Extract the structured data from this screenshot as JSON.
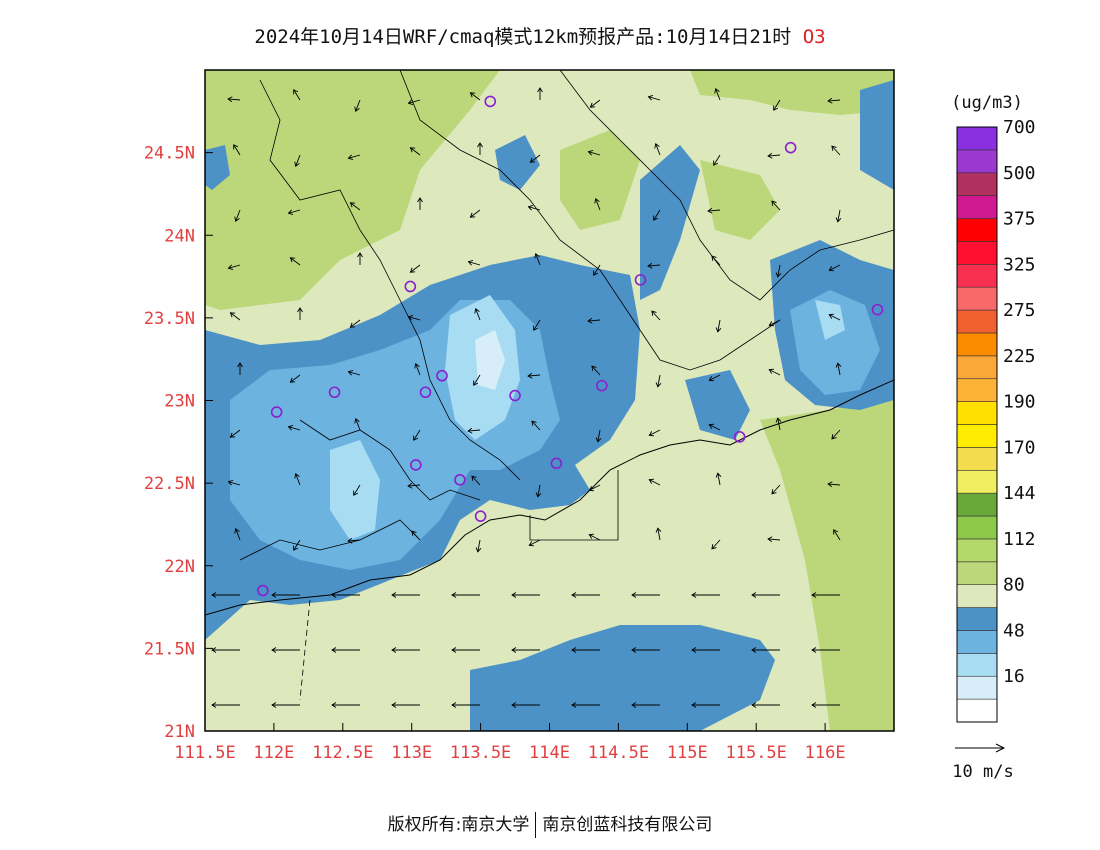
{
  "title": {
    "main": "2024年10月14日WRF/cmaq模式12km预报产品:10月14日21时",
    "species": "O3"
  },
  "map": {
    "lon_range": [
      111.5,
      116.5
    ],
    "lat_range": [
      21.0,
      25.0
    ],
    "x_ticks": [
      111.5,
      112,
      112.5,
      113,
      113.5,
      114,
      114.5,
      115,
      115.5,
      116
    ],
    "x_tick_labels": [
      "111.5E",
      "112E",
      "112.5E",
      "113E",
      "113.5E",
      "114E",
      "114.5E",
      "115E",
      "115.5E",
      "116E"
    ],
    "y_ticks": [
      21,
      21.5,
      22,
      22.5,
      23,
      23.5,
      24,
      24.5
    ],
    "y_tick_labels": [
      "21N",
      "21.5N",
      "22N",
      "22.5N",
      "23N",
      "23.5N",
      "24N",
      "24.5N"
    ],
    "stations": [
      [
        113.57,
        24.81
      ],
      [
        115.75,
        24.53
      ],
      [
        112.99,
        23.69
      ],
      [
        114.66,
        23.73
      ],
      [
        116.38,
        23.55
      ],
      [
        113.22,
        23.15
      ],
      [
        113.1,
        23.05
      ],
      [
        112.44,
        23.05
      ],
      [
        112.02,
        22.93
      ],
      [
        113.75,
        23.03
      ],
      [
        114.38,
        23.09
      ],
      [
        115.38,
        22.78
      ],
      [
        113.03,
        22.61
      ],
      [
        114.05,
        22.62
      ],
      [
        113.35,
        22.52
      ],
      [
        113.5,
        22.3
      ],
      [
        111.92,
        21.85
      ]
    ],
    "vector_scale": "10 m/s"
  },
  "legend": {
    "unit": "(ug/m3)",
    "levels": [
      {
        "color": "#ffffff",
        "label": ""
      },
      {
        "color": "#d7eef9",
        "label": "16"
      },
      {
        "color": "#a8dcf3",
        "label": ""
      },
      {
        "color": "#6cb3e0",
        "label": "48"
      },
      {
        "color": "#4d92c7",
        "label": ""
      },
      {
        "color": "#dde8bd",
        "label": "80"
      },
      {
        "color": "#bcd77a",
        "label": ""
      },
      {
        "color": "#b5d86a",
        "label": "112"
      },
      {
        "color": "#8cc84a",
        "label": ""
      },
      {
        "color": "#6aa83a",
        "label": "144"
      },
      {
        "color": "#f0ee60",
        "label": ""
      },
      {
        "color": "#f4dc50",
        "label": "170"
      },
      {
        "color": "#ffec00",
        "label": ""
      },
      {
        "color": "#ffe000",
        "label": "190"
      },
      {
        "color": "#fbb236",
        "label": ""
      },
      {
        "color": "#fba838",
        "label": "225"
      },
      {
        "color": "#fb8c00",
        "label": ""
      },
      {
        "color": "#f06030",
        "label": "275"
      },
      {
        "color": "#f86a6a",
        "label": ""
      },
      {
        "color": "#f83050",
        "label": "325"
      },
      {
        "color": "#ff1030",
        "label": ""
      },
      {
        "color": "#ff0000",
        "label": "375"
      },
      {
        "color": "#d01890",
        "label": ""
      },
      {
        "color": "#b03060",
        "label": "500"
      },
      {
        "color": "#9c38d0",
        "label": ""
      },
      {
        "color": "#8a30e0",
        "label": "700"
      }
    ]
  },
  "footer": {
    "left": "版权所有:南京大学",
    "right": "南京创蓝科技有限公司"
  }
}
